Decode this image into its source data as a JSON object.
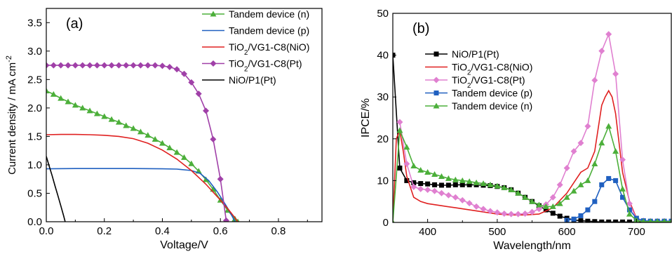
{
  "chart_data": [
    {
      "type": "line",
      "panel_label": "(a)",
      "xlabel": "Voltage/V",
      "ylabel_parts": [
        "Current density / mA cm",
        "-2"
      ],
      "xlim": [
        0,
        0.95
      ],
      "ylim": [
        0,
        3.75
      ],
      "xticks": [
        "0.0",
        "0.2",
        "0.4",
        "0.6",
        "0.8"
      ],
      "xtick_values": [
        0,
        0.2,
        0.4,
        0.6,
        0.8
      ],
      "yticks": [
        "0.0",
        "0.5",
        "1.0",
        "1.5",
        "2.0",
        "2.5",
        "3.0",
        "3.5"
      ],
      "ytick_values": [
        0,
        0.5,
        1.0,
        1.5,
        2.0,
        2.5,
        3.0,
        3.5
      ],
      "legend_position": "top-right",
      "series": [
        {
          "name": "Tandem device (n)",
          "color": "#4caf3a",
          "marker": "triangle",
          "x": [
            0,
            0.025,
            0.05,
            0.075,
            0.1,
            0.125,
            0.15,
            0.175,
            0.2,
            0.225,
            0.25,
            0.275,
            0.3,
            0.325,
            0.35,
            0.375,
            0.4,
            0.425,
            0.45,
            0.475,
            0.5,
            0.525,
            0.55,
            0.575,
            0.6,
            0.625,
            0.65,
            0.66
          ],
          "y": [
            2.3,
            2.24,
            2.17,
            2.11,
            2.05,
            2.0,
            1.95,
            1.9,
            1.85,
            1.8,
            1.75,
            1.69,
            1.64,
            1.58,
            1.52,
            1.45,
            1.38,
            1.3,
            1.22,
            1.13,
            1.02,
            0.89,
            0.74,
            0.57,
            0.38,
            0.2,
            0.05,
            0.0
          ]
        },
        {
          "name": "Tandem device (p)",
          "color": "#2060c0",
          "marker": "none",
          "x": [
            0,
            0.1,
            0.2,
            0.3,
            0.4,
            0.45,
            0.5,
            0.53,
            0.56,
            0.59,
            0.62,
            0.64,
            0.65
          ],
          "y": [
            0.93,
            0.935,
            0.935,
            0.935,
            0.93,
            0.925,
            0.9,
            0.85,
            0.72,
            0.52,
            0.28,
            0.1,
            0.0
          ]
        },
        {
          "name": "TiO2/VG1-C8(NiO)",
          "label_main": "TiO",
          "label_sub": "2",
          "label_rest": "/VG1-C8(NiO)",
          "color": "#e02020",
          "marker": "none",
          "x": [
            0,
            0.05,
            0.1,
            0.15,
            0.2,
            0.25,
            0.3,
            0.35,
            0.4,
            0.45,
            0.5,
            0.55,
            0.6,
            0.63,
            0.65,
            0.66
          ],
          "y": [
            1.53,
            1.535,
            1.535,
            1.53,
            1.52,
            1.5,
            1.46,
            1.38,
            1.26,
            1.1,
            0.9,
            0.66,
            0.38,
            0.2,
            0.07,
            0.0
          ]
        },
        {
          "name": "TiO2/VG1-C8(Pt)",
          "label_main": "TiO",
          "label_sub": "2",
          "label_rest": "/VG1-C8(Pt)",
          "color": "#a040a8",
          "marker": "diamond",
          "x": [
            0,
            0.025,
            0.05,
            0.075,
            0.1,
            0.125,
            0.15,
            0.175,
            0.2,
            0.225,
            0.25,
            0.275,
            0.3,
            0.325,
            0.35,
            0.375,
            0.4,
            0.425,
            0.45,
            0.475,
            0.5,
            0.525,
            0.55,
            0.575,
            0.6,
            0.62
          ],
          "y": [
            2.75,
            2.75,
            2.75,
            2.75,
            2.75,
            2.75,
            2.75,
            2.75,
            2.75,
            2.75,
            2.75,
            2.75,
            2.75,
            2.75,
            2.75,
            2.75,
            2.74,
            2.72,
            2.68,
            2.6,
            2.45,
            2.25,
            1.95,
            1.45,
            0.75,
            0.02
          ]
        },
        {
          "name": "NiO/P1(Pt)",
          "color": "#000000",
          "marker": "none",
          "x": [
            0,
            0.01,
            0.02,
            0.03,
            0.04,
            0.05,
            0.06,
            0.065
          ],
          "y": [
            1.15,
            0.98,
            0.81,
            0.63,
            0.46,
            0.28,
            0.1,
            0.0
          ]
        }
      ]
    },
    {
      "type": "line",
      "panel_label": "(b)",
      "xlabel": "Wavelength/nm",
      "ylabel": "IPCE/%",
      "xlim": [
        350,
        750
      ],
      "ylim": [
        0,
        50
      ],
      "xticks": [
        "400",
        "500",
        "600",
        "700"
      ],
      "xtick_values": [
        400,
        500,
        600,
        700
      ],
      "yticks": [
        "0",
        "10",
        "20",
        "30",
        "40",
        "50"
      ],
      "ytick_values": [
        0,
        10,
        20,
        30,
        40,
        50
      ],
      "legend_position": "top-left",
      "series": [
        {
          "name": "NiO/P1(Pt)",
          "color": "#000000",
          "marker": "square",
          "x": [
            350,
            360,
            370,
            380,
            390,
            400,
            410,
            420,
            430,
            440,
            450,
            460,
            470,
            480,
            490,
            500,
            510,
            520,
            530,
            540,
            550,
            560,
            570,
            580,
            590,
            600,
            610,
            620,
            630,
            640,
            650,
            660,
            670,
            680,
            690,
            700,
            710,
            720,
            730,
            740,
            750
          ],
          "y": [
            40,
            13,
            10,
            9.5,
            9.3,
            9.2,
            9.0,
            8.9,
            8.9,
            9.0,
            9.0,
            9.0,
            9.0,
            8.9,
            8.8,
            8.6,
            8.3,
            7.8,
            7.0,
            6.0,
            5.0,
            4.0,
            3.0,
            2.2,
            1.5,
            1.0,
            0.6,
            0.4,
            0.3,
            0.2,
            0.1,
            0.1,
            0.1,
            0.1,
            0.1,
            0.1,
            0.1,
            0.1,
            0.1,
            0.1,
            0.1
          ]
        },
        {
          "name": "TiO2/VG1-C8(NiO)",
          "label_main": "TiO",
          "label_sub": "2",
          "label_rest": "/VG1-C8(NiO)",
          "color": "#e02020",
          "marker": "none",
          "x": [
            350,
            355,
            360,
            365,
            370,
            380,
            390,
            400,
            420,
            440,
            460,
            480,
            500,
            520,
            540,
            560,
            580,
            600,
            610,
            620,
            630,
            640,
            650,
            655,
            660,
            665,
            670,
            680,
            690,
            700,
            710,
            720,
            750
          ],
          "y": [
            0,
            20,
            22,
            17,
            11,
            6,
            5,
            4.5,
            4,
            3.5,
            3,
            2.5,
            2,
            1.8,
            1.8,
            2,
            3.5,
            7,
            9.5,
            12,
            13,
            17,
            28,
            30,
            31.5,
            30,
            26,
            12,
            5,
            1,
            0.3,
            0.2,
            0.2
          ]
        },
        {
          "name": "TiO2/VG1-C8(Pt)",
          "label_main": "TiO",
          "label_sub": "2",
          "label_rest": "/VG1-C8(Pt)",
          "color": "#e080d0",
          "marker": "diamond",
          "x": [
            360,
            370,
            380,
            390,
            400,
            410,
            420,
            430,
            440,
            450,
            460,
            470,
            480,
            490,
            500,
            510,
            520,
            530,
            540,
            550,
            560,
            570,
            580,
            590,
            600,
            610,
            620,
            630,
            640,
            650,
            660,
            670,
            680,
            690,
            700,
            710,
            720,
            730,
            740,
            750
          ],
          "y": [
            24,
            14,
            8.5,
            8,
            7.8,
            7.5,
            7,
            6.5,
            6,
            5.3,
            4.6,
            3.8,
            3.2,
            2.7,
            2.4,
            2.1,
            2.0,
            2.0,
            2.1,
            2.5,
            3.2,
            4.3,
            6,
            9,
            13,
            17,
            19,
            23,
            34,
            41,
            45,
            35.5,
            15,
            4.5,
            0.8,
            0.4,
            0.3,
            0.3,
            0.3,
            0.3
          ]
        },
        {
          "name": "Tandem device (p)",
          "color": "#2060c0",
          "marker": "square",
          "x": [
            600,
            610,
            620,
            630,
            640,
            650,
            660,
            670,
            680,
            690,
            700,
            710,
            720,
            730,
            740,
            750
          ],
          "y": [
            0.5,
            0.8,
            1.6,
            3,
            5,
            9,
            10.5,
            10,
            6,
            3,
            1,
            0.4,
            0.3,
            0.3,
            0.3,
            0.3
          ]
        },
        {
          "name": "Tandem device (n)",
          "color": "#4caf3a",
          "marker": "triangle",
          "x": [
            350,
            360,
            370,
            380,
            390,
            400,
            410,
            420,
            430,
            440,
            450,
            460,
            470,
            480,
            490,
            500,
            510,
            520,
            530,
            540,
            550,
            560,
            570,
            580,
            590,
            600,
            610,
            620,
            630,
            640,
            650,
            660,
            670,
            680,
            690,
            700,
            710,
            720,
            730,
            740,
            750
          ],
          "y": [
            0,
            22,
            18,
            13.5,
            12.5,
            12,
            11.5,
            11,
            10.5,
            10.2,
            10,
            9.8,
            9.5,
            9.3,
            9,
            8.7,
            8.3,
            7.8,
            7,
            6,
            5,
            4.2,
            3.8,
            3.8,
            4.5,
            6,
            7.5,
            9,
            10,
            14,
            19,
            23,
            17,
            8,
            2,
            0.5,
            0.2,
            0.2,
            0.2,
            0.2,
            0.2
          ]
        }
      ]
    }
  ]
}
